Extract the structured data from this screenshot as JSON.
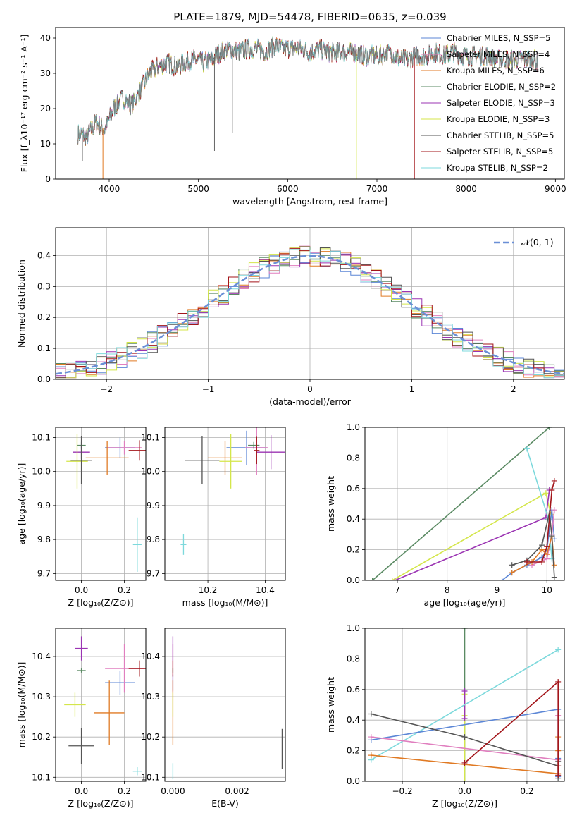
{
  "title": "PLATE=1879, MJD=54478, FIBERID=0635, z=0.039",
  "colors": {
    "chabrier_miles": "#5b86d6",
    "salpeter_miles": "#e07fbf",
    "kroupa_miles": "#e07a24",
    "chabrier_elodie": "#5a8a63",
    "salpeter_elodie": "#9b34b3",
    "kroupa_elodie": "#d4e64a",
    "chabrier_stelib": "#555555",
    "salpeter_stelib": "#a3151a",
    "kroupa_stelib": "#7dd9dc",
    "gauss": "#6a8fd6",
    "grid": "#b0b0b0"
  },
  "chart_data": [
    {
      "id": "spectrum",
      "type": "line",
      "xlabel": "wavelength [Angstrom, rest frame]",
      "ylabel": "Flux [f_λ10⁻¹⁷ erg cm⁻² s⁻¹ A⁻¹]",
      "xlim": [
        3400,
        9100
      ],
      "ylim": [
        0,
        43
      ],
      "xticks": [
        4000,
        5000,
        6000,
        7000,
        8000,
        9000
      ],
      "yticks": [
        0,
        10,
        20,
        30,
        40
      ],
      "grid": false,
      "legend_position": "right",
      "continuum": {
        "x": [
          3650,
          3750,
          3850,
          3950,
          4050,
          4150,
          4250,
          4350,
          4450,
          4550,
          4650,
          4750,
          4850,
          4950,
          5050,
          5150,
          5250,
          5350,
          5450,
          5550,
          5650,
          5750,
          5850,
          5950,
          6050,
          6150,
          6250,
          6350,
          6450,
          6550,
          6650,
          6750,
          6850,
          6950,
          7050,
          7150,
          7250,
          7350,
          7450,
          7550,
          7650,
          7750,
          7850,
          7950,
          8050,
          8150,
          8250,
          8350,
          8450,
          8550,
          8650,
          8750,
          8800
        ],
        "y": [
          13,
          12,
          16,
          14,
          20,
          23,
          21,
          25,
          30,
          32,
          33,
          32,
          33,
          34,
          33,
          34,
          36,
          37,
          36,
          37,
          37,
          36,
          38,
          37,
          37,
          37,
          36,
          37,
          36,
          36,
          36,
          36,
          35,
          35,
          35,
          36,
          34,
          34,
          35,
          35,
          36,
          35,
          36,
          35,
          35,
          35,
          35,
          34,
          34,
          34,
          34,
          34,
          33
        ]
      },
      "features": [
        {
          "x": 3700,
          "y": 5
        },
        {
          "x": 3930,
          "y": 0
        },
        {
          "x": 5180,
          "y": 8
        },
        {
          "x": 5380,
          "y": 13
        },
        {
          "x": 6770,
          "y": 0
        },
        {
          "x": 7420,
          "y": 0
        }
      ],
      "legend": [
        "Chabrier MILES, N_SSP=5",
        "Salpeter MILES, N_SSP=4",
        "Kroupa MILES, N_SSP=6",
        "Chabrier ELODIE, N_SSP=2",
        "Salpeter ELODIE, N_SSP=3",
        "Kroupa ELODIE, N_SSP=3",
        "Chabrier STELIB, N_SSP=5",
        "Salpeter STELIB, N_SSP=5",
        "Kroupa STELIB, N_SSP=2"
      ]
    },
    {
      "id": "residuals",
      "type": "line",
      "xlabel": "(data-model)/error",
      "ylabel": "Normed distribution",
      "xlim": [
        -2.5,
        2.5
      ],
      "ylim": [
        0,
        0.49
      ],
      "xticks": [
        -2,
        -1,
        0,
        1,
        2
      ],
      "xtick_labels": [
        "−2",
        "−1",
        "0",
        "1",
        "2"
      ],
      "yticks": [
        0.0,
        0.1,
        0.2,
        0.3,
        0.4
      ],
      "ytick_labels": [
        "0.0",
        "0.1",
        "0.2",
        "0.3",
        "0.4"
      ],
      "grid": true,
      "legend_position": "top-right",
      "legend": [
        "𝒩(0, 1)"
      ],
      "bin_width": 0.1
    },
    {
      "id": "age_vs_Z",
      "type": "scatter",
      "xlabel": "Z [log₁₀(Z/Z⊙)]",
      "ylabel": "age  [log₁₀(age/yr)]",
      "xlim": [
        -0.12,
        0.3
      ],
      "ylim": [
        9.68,
        10.13
      ],
      "xticks": [
        0.0,
        0.2
      ],
      "xtick_labels": [
        "0.0",
        "0.2"
      ],
      "yticks": [
        9.7,
        9.8,
        9.9,
        10.0,
        10.1
      ],
      "ytick_labels": [
        "9.7",
        "9.8",
        "9.9",
        "10.0",
        "10.1"
      ],
      "grid": true,
      "points": [
        {
          "model": "chabrier_miles",
          "x": 0.18,
          "y": 10.07,
          "xerr": 0.07,
          "yerr": 0.03
        },
        {
          "model": "salpeter_miles",
          "x": 0.2,
          "y": 10.07,
          "xerr": 0.08,
          "yerr": 0.02
        },
        {
          "model": "kroupa_miles",
          "x": 0.12,
          "y": 10.04,
          "xerr": 0.1,
          "yerr": 0.05
        },
        {
          "model": "chabrier_elodie",
          "x": 0.0,
          "y": 10.077,
          "xerr": 0.02,
          "yerr": 0.01
        },
        {
          "model": "salpeter_elodie",
          "x": 0.0,
          "y": 10.057,
          "xerr": 0.04,
          "yerr": 0.02
        },
        {
          "model": "kroupa_elodie",
          "x": -0.02,
          "y": 10.03,
          "xerr": 0.05,
          "yerr": 0.08
        },
        {
          "model": "chabrier_stelib",
          "x": 0.0,
          "y": 10.033,
          "xerr": 0.05,
          "yerr": 0.07
        },
        {
          "model": "salpeter_stelib",
          "x": 0.27,
          "y": 10.062,
          "xerr": 0.05,
          "yerr": 0.03
        },
        {
          "model": "kroupa_stelib",
          "x": 0.26,
          "y": 9.785,
          "xerr": 0.02,
          "yerr": 0.08
        }
      ]
    },
    {
      "id": "age_vs_mass",
      "type": "scatter",
      "xlabel": "mass [log₁₀(M/M⊙)]",
      "ylabel": "",
      "xlim": [
        10.05,
        10.47
      ],
      "ylim": [
        9.68,
        10.13
      ],
      "xticks": [
        10.2,
        10.4
      ],
      "xtick_labels": [
        "10.2",
        "10.4"
      ],
      "yticks": [
        9.7,
        9.8,
        9.9,
        10.0,
        10.1
      ],
      "ytick_labels": [
        "9.7",
        "9.8",
        "9.9",
        "10.0",
        "10.1"
      ],
      "grid": true,
      "points": [
        {
          "model": "chabrier_miles",
          "x": 10.335,
          "y": 10.07,
          "xerr": 0.07,
          "yerr": 0.05
        },
        {
          "model": "salpeter_miles",
          "x": 10.37,
          "y": 10.07,
          "xerr": 0.04,
          "yerr": 0.08
        },
        {
          "model": "kroupa_miles",
          "x": 10.26,
          "y": 10.04,
          "xerr": 0.06,
          "yerr": 0.05
        },
        {
          "model": "chabrier_elodie",
          "x": 10.36,
          "y": 10.077,
          "xerr": 0.02,
          "yerr": 0.01
        },
        {
          "model": "salpeter_elodie",
          "x": 10.42,
          "y": 10.057,
          "xerr": 0.05,
          "yerr": 0.05
        },
        {
          "model": "kroupa_elodie",
          "x": 10.28,
          "y": 10.03,
          "xerr": 0.04,
          "yerr": 0.08
        },
        {
          "model": "chabrier_stelib",
          "x": 10.18,
          "y": 10.033,
          "xerr": 0.06,
          "yerr": 0.07
        },
        {
          "model": "salpeter_stelib",
          "x": 10.37,
          "y": 10.062,
          "xerr": 0.01,
          "yerr": 0.04
        },
        {
          "model": "kroupa_stelib",
          "x": 10.115,
          "y": 9.785,
          "xerr": 0.01,
          "yerr": 0.03
        }
      ]
    },
    {
      "id": "weight_vs_age",
      "type": "line",
      "xlabel": "age  [log₁₀(age/yr)]",
      "ylabel": "mass weight",
      "xlim": [
        6.35,
        10.35
      ],
      "ylim": [
        0,
        1
      ],
      "xticks": [
        7,
        8,
        9,
        10
      ],
      "xtick_labels": [
        "7",
        "8",
        "9",
        "10"
      ],
      "yticks": [
        0.0,
        0.2,
        0.4,
        0.6,
        0.8,
        1.0
      ],
      "ytick_labels": [
        "0.0",
        "0.2",
        "0.4",
        "0.6",
        "0.8",
        "1.0"
      ],
      "grid": true,
      "series": [
        {
          "model": "chabrier_elodie",
          "x": [
            6.5,
            10.05
          ],
          "y": [
            0.0,
            1.0
          ]
        },
        {
          "model": "kroupa_elodie",
          "x": [
            6.9,
            9.98,
            10.08
          ],
          "y": [
            0.0,
            0.57,
            0.43
          ]
        },
        {
          "model": "salpeter_elodie",
          "x": [
            6.95,
            9.98,
            10.05
          ],
          "y": [
            0.0,
            0.41,
            0.59
          ]
        },
        {
          "model": "kroupa_stelib",
          "x": [
            9.6,
            10.03,
            10.1
          ],
          "y": [
            0.86,
            0.4,
            0.14
          ]
        },
        {
          "model": "chabrier_miles",
          "x": [
            9.1,
            9.3,
            9.6,
            9.9,
            10.0,
            10.1,
            10.15
          ],
          "y": [
            0.0,
            0.05,
            0.1,
            0.15,
            0.2,
            0.46,
            0.27
          ]
        },
        {
          "model": "salpeter_miles",
          "x": [
            9.7,
            10.0,
            10.1,
            10.15
          ],
          "y": [
            0.1,
            0.14,
            0.3,
            0.46
          ]
        },
        {
          "model": "kroupa_miles",
          "x": [
            9.3,
            9.7,
            9.9,
            10.0,
            10.1,
            10.15
          ],
          "y": [
            0.05,
            0.12,
            0.2,
            0.17,
            0.29,
            0.1
          ]
        },
        {
          "model": "chabrier_stelib",
          "x": [
            9.3,
            9.6,
            9.9,
            10.05,
            10.1,
            10.15
          ],
          "y": [
            0.1,
            0.13,
            0.23,
            0.44,
            0.29,
            0.02
          ]
        },
        {
          "model": "salpeter_stelib",
          "x": [
            9.6,
            9.9,
            10.0,
            10.1,
            10.15
          ],
          "y": [
            0.12,
            0.12,
            0.22,
            0.59,
            0.65
          ]
        }
      ]
    },
    {
      "id": "mass_vs_Z",
      "type": "scatter",
      "xlabel": "Z [log₁₀(Z/Z⊙)]",
      "ylabel": "mass [log₁₀(M/M⊙)]",
      "xlim": [
        -0.12,
        0.3
      ],
      "ylim": [
        10.09,
        10.47
      ],
      "xticks": [
        0.0,
        0.2
      ],
      "xtick_labels": [
        "0.0",
        "0.2"
      ],
      "yticks": [
        10.1,
        10.2,
        10.3,
        10.4
      ],
      "ytick_labels": [
        "10.1",
        "10.2",
        "10.3",
        "10.4"
      ],
      "grid": true,
      "points": [
        {
          "model": "chabrier_miles",
          "x": 0.18,
          "y": 10.335,
          "xerr": 0.07,
          "yerr": 0.03
        },
        {
          "model": "salpeter_miles",
          "x": 0.2,
          "y": 10.37,
          "xerr": 0.09,
          "yerr": 0.06
        },
        {
          "model": "kroupa_miles",
          "x": 0.13,
          "y": 10.26,
          "xerr": 0.07,
          "yerr": 0.08
        },
        {
          "model": "chabrier_elodie",
          "x": 0.0,
          "y": 10.365,
          "xerr": 0.02,
          "yerr": 0.005
        },
        {
          "model": "salpeter_elodie",
          "x": 0.0,
          "y": 10.42,
          "xerr": 0.03,
          "yerr": 0.03
        },
        {
          "model": "kroupa_elodie",
          "x": -0.03,
          "y": 10.28,
          "xerr": 0.05,
          "yerr": 0.03
        },
        {
          "model": "chabrier_stelib",
          "x": 0.0,
          "y": 10.178,
          "xerr": 0.06,
          "yerr": 0.045
        },
        {
          "model": "salpeter_stelib",
          "x": 0.27,
          "y": 10.37,
          "xerr": 0.05,
          "yerr": 0.02
        },
        {
          "model": "kroupa_stelib",
          "x": 0.26,
          "y": 10.115,
          "xerr": 0.02,
          "yerr": 0.01
        }
      ]
    },
    {
      "id": "mass_vs_ebv",
      "type": "scatter",
      "xlabel": "E(B-V)",
      "ylabel": "",
      "xlim": [
        -0.00025,
        0.0035
      ],
      "ylim": [
        10.09,
        10.47
      ],
      "xticks": [
        0.0,
        0.002
      ],
      "xtick_labels": [
        "0.000",
        "0.002"
      ],
      "yticks": [
        10.1,
        10.2,
        10.3,
        10.4
      ],
      "ytick_labels": [
        "10.1",
        "10.2",
        "10.3",
        "10.4"
      ],
      "grid": true,
      "points": [
        {
          "model": "chabrier_miles",
          "x": 0.0,
          "y": 10.335,
          "yerr": 0.02
        },
        {
          "model": "salpeter_miles",
          "x": 0.0,
          "y": 10.37,
          "yerr": 0.06
        },
        {
          "model": "kroupa_miles",
          "x": 0.0,
          "y": 10.26,
          "yerr": 0.08
        },
        {
          "model": "chabrier_elodie",
          "x": 0.0,
          "y": 10.365,
          "yerr": 0.005
        },
        {
          "model": "salpeter_elodie",
          "x": 0.0,
          "y": 10.42,
          "yerr": 0.03
        },
        {
          "model": "kroupa_elodie",
          "x": 0.0,
          "y": 10.28,
          "yerr": 0.03
        },
        {
          "model": "chabrier_stelib",
          "x": 0.0034,
          "y": 10.17,
          "yerr": 0.05
        },
        {
          "model": "salpeter_stelib",
          "x": 0.0,
          "y": 10.37,
          "yerr": 0.02
        },
        {
          "model": "kroupa_stelib",
          "x": 0.0,
          "y": 10.115,
          "yerr": 0.02
        }
      ]
    },
    {
      "id": "weight_vs_Z",
      "type": "line",
      "xlabel": "Z [log₁₀(Z/Z⊙)]",
      "ylabel": "mass weight",
      "xlim": [
        -0.32,
        0.32
      ],
      "ylim": [
        0,
        1
      ],
      "xticks": [
        -0.2,
        0.0,
        0.2
      ],
      "xtick_labels": [
        "−0.2",
        "0.0",
        "0.2"
      ],
      "yticks": [
        0.0,
        0.2,
        0.4,
        0.6,
        0.8,
        1.0
      ],
      "ytick_labels": [
        "0.0",
        "0.2",
        "0.4",
        "0.6",
        "0.8",
        "1.0"
      ],
      "grid": true,
      "series": [
        {
          "model": "chabrier_elodie",
          "x": [
            0.0,
            0.0
          ],
          "y": [
            1.0,
            0.0
          ]
        },
        {
          "model": "kroupa_elodie",
          "x": [
            0.0,
            0.0,
            0.0
          ],
          "y": [
            0.57,
            0.43,
            0.0
          ]
        },
        {
          "model": "salpeter_elodie",
          "x": [
            0.0,
            0.0
          ],
          "y": [
            0.59,
            0.41
          ]
        },
        {
          "model": "kroupa_stelib",
          "x": [
            -0.3,
            0.3
          ],
          "y": [
            0.14,
            0.86
          ]
        },
        {
          "model": "chabrier_miles",
          "x": [
            -0.3,
            0.3,
            0.3,
            0.3
          ],
          "y": [
            0.27,
            0.47,
            0.15,
            0.03
          ]
        },
        {
          "model": "salpeter_miles",
          "x": [
            -0.3,
            0.3,
            0.3
          ],
          "y": [
            0.29,
            0.14,
            0.43
          ]
        },
        {
          "model": "kroupa_miles",
          "x": [
            -0.3,
            0.3,
            0.3,
            0.3
          ],
          "y": [
            0.17,
            0.05,
            0.29,
            0.2
          ]
        },
        {
          "model": "chabrier_stelib",
          "x": [
            -0.3,
            0.0,
            0.3,
            0.3,
            0.3
          ],
          "y": [
            0.44,
            0.29,
            0.1,
            0.13,
            0.02
          ]
        },
        {
          "model": "salpeter_stelib",
          "x": [
            0.0,
            0.3,
            0.3,
            0.3
          ],
          "y": [
            0.12,
            0.65,
            0.1,
            0.04
          ]
        }
      ]
    }
  ]
}
